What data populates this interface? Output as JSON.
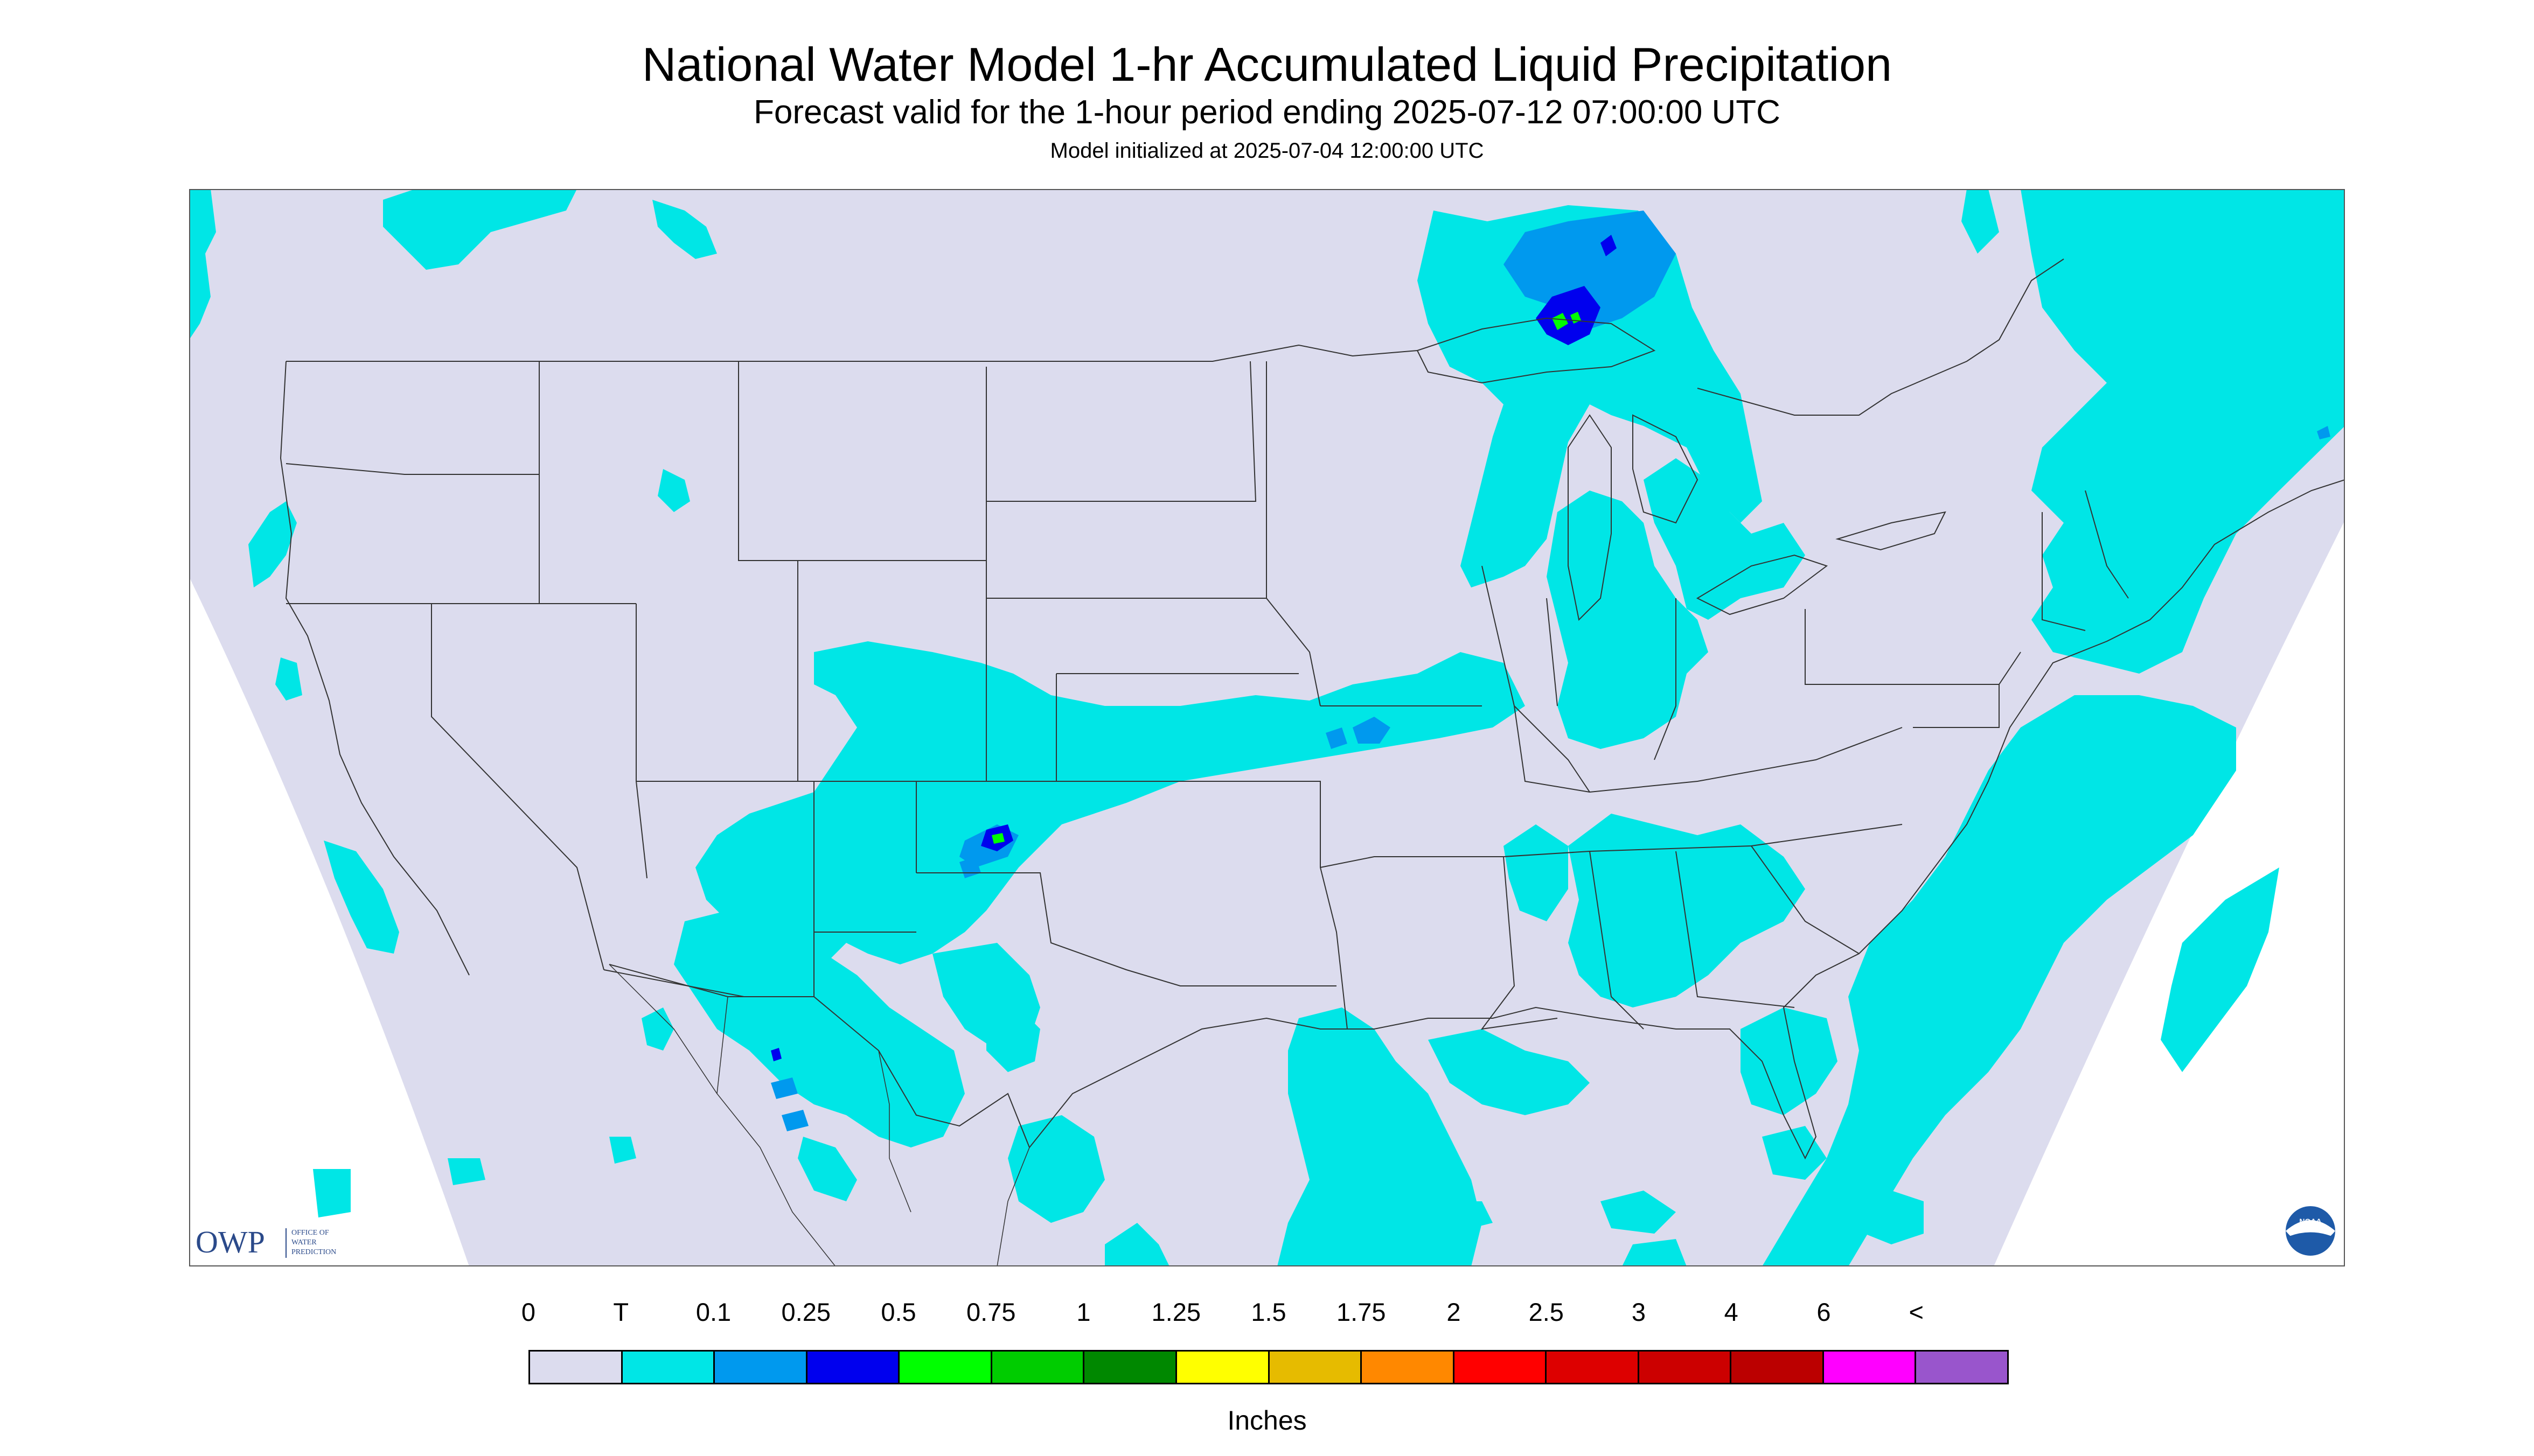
{
  "title": "National Water Model 1-hr Accumulated Liquid Precipitation",
  "subtitle": "Forecast valid for the 1-hour period ending 2025-07-12 07:00:00 UTC",
  "init_line": "Model initialized at 2025-07-04 12:00:00 UTC",
  "colors": {
    "background": "#dcdcee",
    "trace": "#00e6e6",
    "light_blue": "#0099ee",
    "blue": "#0000ee",
    "green": "#00ff00",
    "border_line": "#333333"
  },
  "logos": {
    "owp_mark": "OWP",
    "owp_text_1": "OFFICE OF",
    "owp_text_2": "WATER",
    "owp_text_3": "PREDICTION",
    "noaa_mark": "NOAA"
  },
  "legend": {
    "labels": [
      "0",
      "T",
      "0.1",
      "0.25",
      "0.5",
      "0.75",
      "1",
      "1.25",
      "1.5",
      "1.75",
      "2",
      "2.5",
      "3",
      "4",
      "6",
      "<"
    ],
    "colors": [
      "#dcdcee",
      "#00e6e6",
      "#0099ee",
      "#0000ee",
      "#00ff00",
      "#00cc00",
      "#008800",
      "#ffff00",
      "#e6bb00",
      "#ff8800",
      "#ff0000",
      "#dd0000",
      "#cc0000",
      "#bb0000",
      "#ff00ff",
      "#9955cc"
    ],
    "units": "Inches"
  }
}
